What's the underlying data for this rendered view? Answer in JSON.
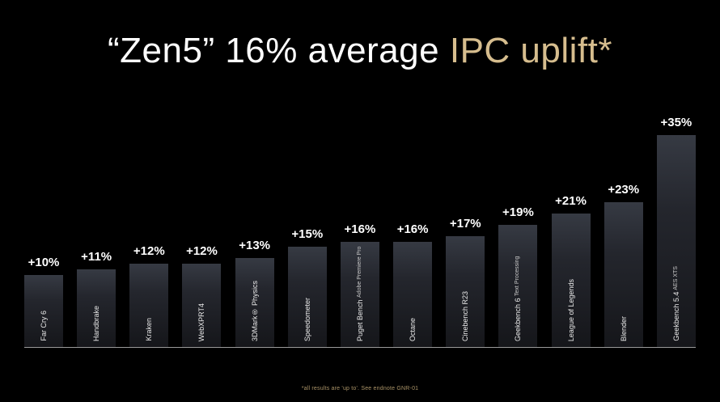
{
  "title": {
    "white_part": "“Zen5” 16% average ",
    "accent_part": "IPC uplift*"
  },
  "footer": "*all results are 'up to'. See endnote GNR-01",
  "colors": {
    "background": "#000000",
    "accent_gold": "#d6bd8e",
    "bar_top": "#363a43",
    "bar_bottom": "#15161a",
    "value_label": "#ffffff",
    "baseline": "#9a9a9a",
    "footnote": "#ab9468"
  },
  "chart_data": {
    "type": "bar",
    "title": "“Zen5” 16% average IPC uplift*",
    "xlabel": "",
    "ylabel": "",
    "ylim": [
      0,
      35
    ],
    "grid": false,
    "legend": "none",
    "categories": [
      {
        "label": "Far Cry 6",
        "sublabel": ""
      },
      {
        "label": "Handbrake",
        "sublabel": ""
      },
      {
        "label": "Kraken",
        "sublabel": ""
      },
      {
        "label": "WebXPRT4",
        "sublabel": ""
      },
      {
        "label": "3DMark® Physics",
        "sublabel": ""
      },
      {
        "label": "Speedometer",
        "sublabel": ""
      },
      {
        "label": "Puget Bench",
        "sublabel": "Adobe Premiere Pro"
      },
      {
        "label": "Octane",
        "sublabel": ""
      },
      {
        "label": "Cinebench R23",
        "sublabel": ""
      },
      {
        "label": "Geekbench 6",
        "sublabel": "Text Processing"
      },
      {
        "label": "League of Legends",
        "sublabel": ""
      },
      {
        "label": "Blender",
        "sublabel": ""
      },
      {
        "label": "Geekbench 5.4",
        "sublabel": "AES XTS"
      }
    ],
    "values": [
      10,
      11,
      12,
      12,
      13,
      15,
      16,
      16,
      17,
      19,
      21,
      23,
      35
    ],
    "value_labels": [
      "+10%",
      "+11%",
      "+12%",
      "+12%",
      "+13%",
      "+15%",
      "+16%",
      "+16%",
      "+17%",
      "+19%",
      "+21%",
      "+23%",
      "+35%"
    ]
  }
}
